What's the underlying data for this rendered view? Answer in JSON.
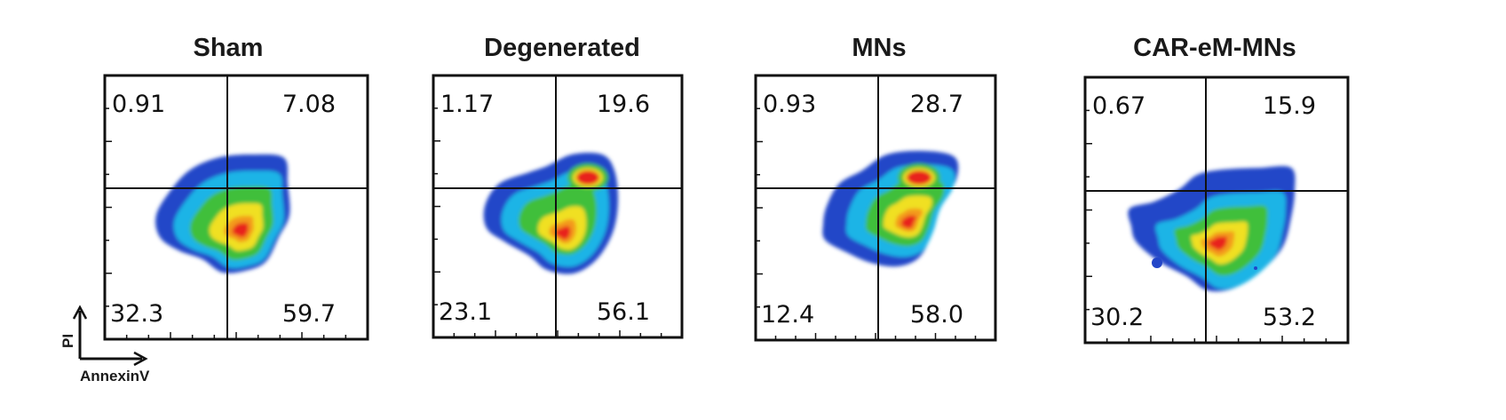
{
  "chart_data": {
    "type": "density-scatter",
    "xlabel": "AnnexinV",
    "ylabel": "PI",
    "panels": [
      {
        "title": "Sham",
        "quadrants": {
          "upper_left": "0.91",
          "upper_right": "7.08",
          "lower_left": "32.3",
          "lower_right": "59.7"
        }
      },
      {
        "title": "Degenerated",
        "quadrants": {
          "upper_left": "1.17",
          "upper_right": "19.6",
          "lower_left": "23.1",
          "lower_right": "56.1"
        }
      },
      {
        "title": "MNs",
        "quadrants": {
          "upper_left": "0.93",
          "upper_right": "28.7",
          "lower_left": "12.4",
          "lower_right": "58.0"
        }
      },
      {
        "title": "CAR-eM-MNs",
        "quadrants": {
          "upper_left": "0.67",
          "upper_right": "15.9",
          "lower_left": "30.2",
          "lower_right": "53.2"
        }
      }
    ],
    "colors": {
      "low": "#2346c8",
      "mid_low": "#1fb4e6",
      "mid": "#3fbf3a",
      "mid_high": "#f0e020",
      "high": "#e8231c"
    }
  }
}
